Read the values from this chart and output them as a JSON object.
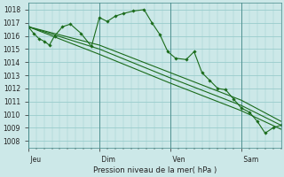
{
  "bg_color": "#cce8e8",
  "grid_color": "#99cccc",
  "line_color": "#1a6b1a",
  "marker_color": "#1a6b1a",
  "xlabel": "Pression niveau de la mer( hPa )",
  "ylim": [
    1007.5,
    1018.5
  ],
  "yticks": [
    1008,
    1009,
    1010,
    1011,
    1012,
    1013,
    1014,
    1015,
    1016,
    1017,
    1018
  ],
  "xtick_labels": [
    " Jeu",
    " Dim",
    " Ven",
    " Sam"
  ],
  "xtick_positions": [
    0,
    27,
    54,
    81
  ],
  "xlim": [
    0,
    96
  ],
  "series0_x": [
    0,
    2,
    4,
    6,
    8,
    10,
    13,
    16,
    20,
    24,
    27,
    30,
    33,
    36,
    40,
    44,
    47,
    50,
    53,
    56,
    60,
    63,
    66,
    69,
    72,
    75,
    78,
    81,
    84,
    87,
    90,
    93,
    96
  ],
  "series0_y": [
    1016.7,
    1016.2,
    1015.8,
    1015.6,
    1015.3,
    1016.0,
    1016.7,
    1016.9,
    1016.2,
    1015.2,
    1017.4,
    1017.1,
    1017.5,
    1017.7,
    1017.9,
    1018.0,
    1017.0,
    1016.1,
    1014.8,
    1014.3,
    1014.2,
    1014.8,
    1013.2,
    1012.6,
    1012.0,
    1011.9,
    1011.2,
    1010.5,
    1010.2,
    1009.5,
    1008.6,
    1009.0,
    1009.2
  ],
  "series1_x": [
    0,
    27,
    54,
    81,
    96
  ],
  "series1_y": [
    1016.7,
    1015.3,
    1013.2,
    1011.1,
    1009.5
  ],
  "series2_x": [
    0,
    27,
    54,
    81,
    96
  ],
  "series2_y": [
    1016.7,
    1015.0,
    1012.8,
    1010.7,
    1009.2
  ],
  "series3_x": [
    0,
    27,
    54,
    81,
    96
  ],
  "series3_y": [
    1016.7,
    1014.6,
    1012.4,
    1010.3,
    1008.9
  ],
  "marker_x": [
    0,
    2,
    4,
    6,
    8,
    10,
    13,
    16,
    20,
    24,
    27,
    30,
    33,
    36,
    40,
    44,
    47,
    50,
    53,
    56,
    60,
    63,
    66,
    69,
    72,
    75,
    78,
    81,
    84,
    87,
    90,
    93,
    96
  ]
}
